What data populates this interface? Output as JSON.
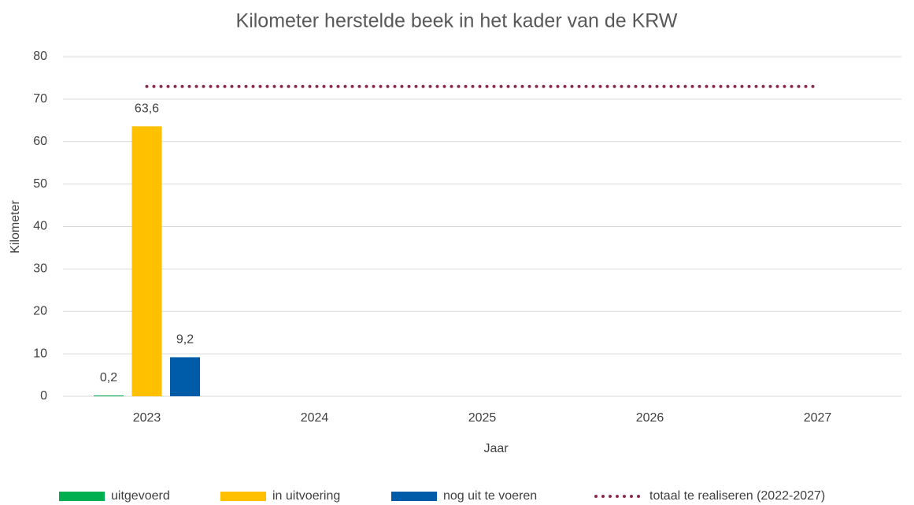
{
  "chart_data": {
    "type": "bar",
    "title": "Kilometer herstelde beek in het kader van de KRW",
    "x_label": "Jaar",
    "y_label": "Kilometer",
    "categories": [
      "2023",
      "2024",
      "2025",
      "2026",
      "2027"
    ],
    "series": [
      {
        "name": "uitgevoerd",
        "color": "#00b050",
        "values": [
          0.2,
          null,
          null,
          null,
          null
        ],
        "value_labels": [
          "0,2",
          null,
          null,
          null,
          null
        ]
      },
      {
        "name": "in uitvoering",
        "color": "#ffc000",
        "values": [
          63.6,
          null,
          null,
          null,
          null
        ],
        "value_labels": [
          "63,6",
          null,
          null,
          null,
          null
        ]
      },
      {
        "name": "nog uit te voeren",
        "color": "#005ba8",
        "values": [
          9.2,
          null,
          null,
          null,
          null
        ],
        "value_labels": [
          "9,2",
          null,
          null,
          null,
          null
        ]
      },
      {
        "name": "totaal te realiseren (2022-2027)",
        "color": "#8b2a4a",
        "type": "line",
        "values": [
          73,
          73,
          73,
          73,
          73
        ]
      }
    ],
    "ylim": [
      0,
      80
    ],
    "yticks": [
      0,
      10,
      20,
      30,
      40,
      50,
      60,
      70,
      80
    ],
    "grid": true,
    "legend": "bottom"
  }
}
